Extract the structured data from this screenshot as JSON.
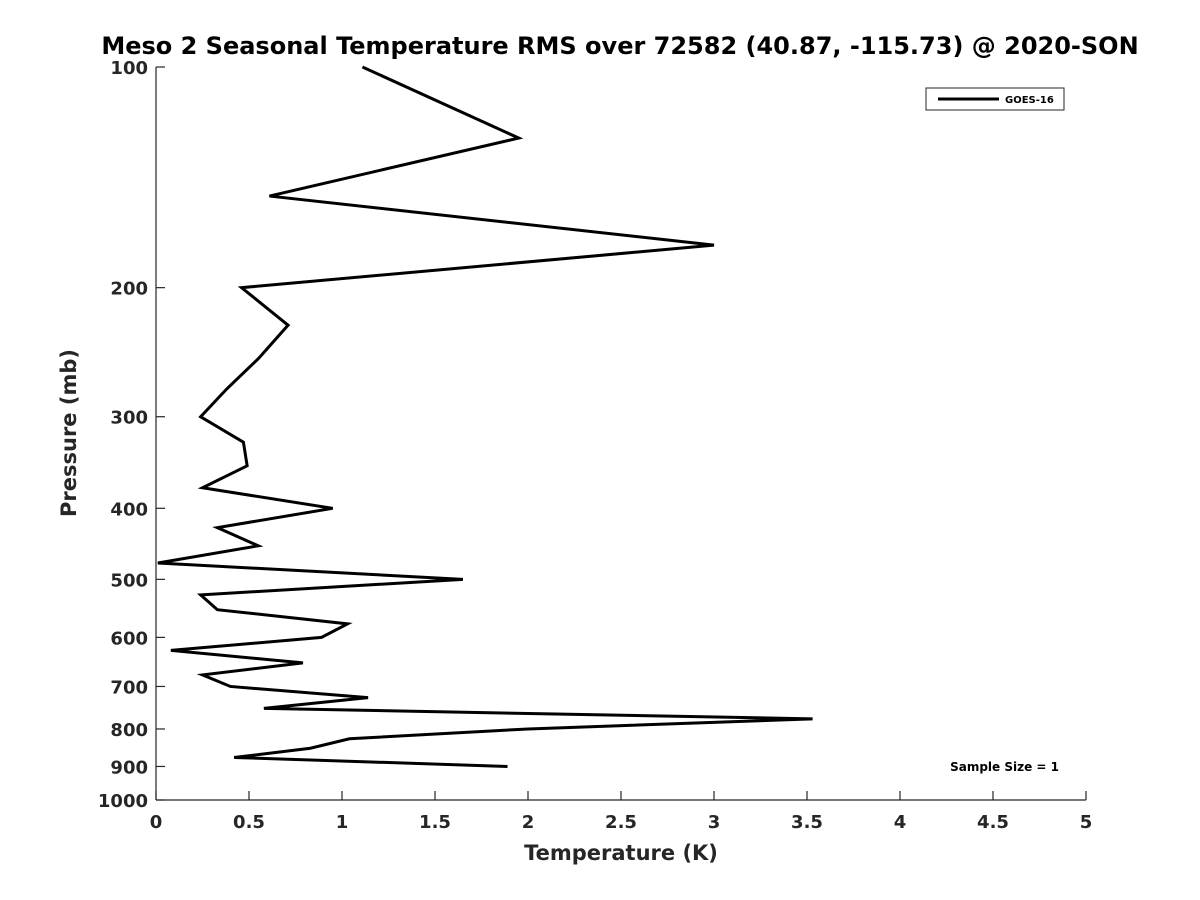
{
  "chart_data": {
    "type": "line",
    "title": "Meso 2 Seasonal Temperature RMS over 72582 (40.87, -115.73) @ 2020-SON",
    "xlabel": "Temperature (K)",
    "ylabel": "Pressure (mb)",
    "xlim": [
      0,
      5
    ],
    "ylim": [
      100,
      1000
    ],
    "yscale": "log",
    "yreversed": true,
    "grid": false,
    "legend_position": "top-right",
    "x_ticks": [
      "0",
      "0.5",
      "1",
      "1.5",
      "2",
      "2.5",
      "3",
      "3.5",
      "4",
      "4.5",
      "5"
    ],
    "y_ticks": [
      "100",
      "200",
      "300",
      "400",
      "500",
      "600",
      "700",
      "800",
      "900",
      "1000"
    ],
    "series": [
      {
        "name": "GOES-16",
        "color": "#000000",
        "points": [
          [
            1.11,
            100
          ],
          [
            1.95,
            125
          ],
          [
            0.61,
            150
          ],
          [
            3.0,
            175
          ],
          [
            0.46,
            200
          ],
          [
            0.71,
            225
          ],
          [
            0.55,
            250
          ],
          [
            0.38,
            275
          ],
          [
            0.24,
            300
          ],
          [
            0.47,
            325
          ],
          [
            0.49,
            350
          ],
          [
            0.25,
            375
          ],
          [
            0.95,
            400
          ],
          [
            0.33,
            425
          ],
          [
            0.55,
            450
          ],
          [
            0.01,
            475
          ],
          [
            1.65,
            500
          ],
          [
            0.24,
            525
          ],
          [
            0.33,
            550
          ],
          [
            1.03,
            575
          ],
          [
            0.89,
            600
          ],
          [
            0.08,
            625
          ],
          [
            0.79,
            650
          ],
          [
            0.25,
            675
          ],
          [
            0.4,
            700
          ],
          [
            1.14,
            725
          ],
          [
            0.58,
            750
          ],
          [
            3.53,
            775
          ],
          [
            2.0,
            800
          ],
          [
            1.04,
            825
          ],
          [
            0.83,
            850
          ],
          [
            0.42,
            875
          ],
          [
            1.89,
            900
          ]
        ]
      }
    ],
    "annotations": [
      "Sample Size = 1"
    ]
  }
}
